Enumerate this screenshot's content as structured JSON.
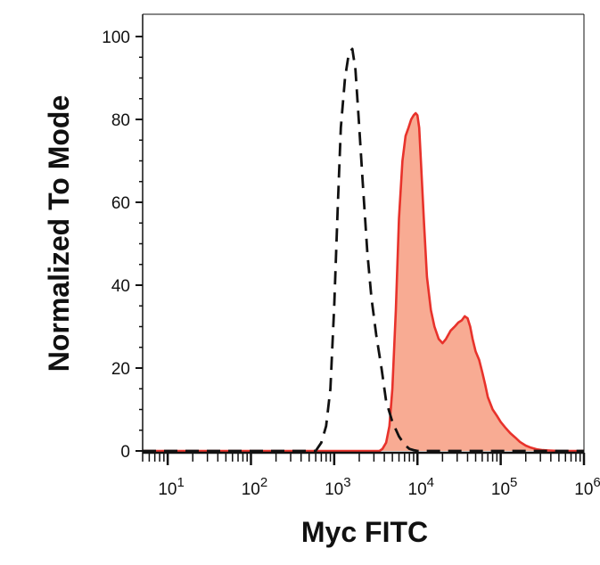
{
  "chart_data": {
    "type": "area",
    "xlabel": "Myc FITC",
    "ylabel": "Normalized To Mode",
    "x_scale": "log",
    "xlim": [
      5,
      1000000
    ],
    "ylim": [
      0,
      100
    ],
    "grid": false,
    "x_ticks": [
      {
        "value": 10,
        "base": "10",
        "exp": "1"
      },
      {
        "value": 100,
        "base": "10",
        "exp": "2"
      },
      {
        "value": 1000,
        "base": "10",
        "exp": "3"
      },
      {
        "value": 10000,
        "base": "10",
        "exp": "4"
      },
      {
        "value": 100000,
        "base": "10",
        "exp": "5"
      },
      {
        "value": 1000000,
        "base": "10",
        "exp": "6"
      }
    ],
    "y_ticks": [
      {
        "value": 0,
        "label": "0"
      },
      {
        "value": 20,
        "label": "20"
      },
      {
        "value": 40,
        "label": "40"
      },
      {
        "value": 60,
        "label": "60"
      },
      {
        "value": 80,
        "label": "80"
      },
      {
        "value": 100,
        "label": "100"
      }
    ],
    "series": [
      {
        "style": "dashed-outline",
        "color": "#111111",
        "x": [
          5,
          600,
          700,
          800,
          900,
          1000,
          1100,
          1200,
          1350,
          1500,
          1650,
          1800,
          2000,
          2200,
          2500,
          2800,
          3200,
          3700,
          4200,
          5000,
          6000,
          7000,
          8000,
          9000,
          10000,
          12000,
          1000000
        ],
        "y": [
          0,
          0,
          2,
          6,
          15,
          35,
          58,
          78,
          90,
          96,
          97,
          92,
          78,
          65,
          48,
          37,
          28,
          20,
          12,
          7,
          3.5,
          1.5,
          0.5,
          0.2,
          0,
          0,
          0
        ]
      },
      {
        "style": "filled",
        "color": "#e8322b",
        "fill": "#f8ab93",
        "x": [
          5,
          3500,
          3800,
          4200,
          4600,
          5000,
          5500,
          6000,
          6600,
          7200,
          7800,
          8400,
          9000,
          9500,
          10000,
          10500,
          11000,
          12000,
          13000,
          14500,
          16000,
          18000,
          20000,
          22000,
          25000,
          28000,
          31000,
          34000,
          37000,
          40000,
          43000,
          46000,
          50000,
          55000,
          60000,
          65000,
          70000,
          80000,
          90000,
          100000,
          115000,
          130000,
          150000,
          170000,
          200000,
          230000,
          270000,
          320000,
          380000,
          500000,
          1000000
        ],
        "y": [
          0,
          0,
          0.5,
          2,
          6,
          15,
          34,
          56,
          70,
          76,
          78,
          80,
          81,
          81.5,
          81,
          78,
          70,
          55,
          42,
          34,
          30,
          27,
          26,
          27,
          29,
          30,
          31,
          31.5,
          32.5,
          32,
          30,
          27,
          24,
          22,
          19,
          16,
          13,
          10,
          8.5,
          7,
          5.5,
          4.3,
          3.2,
          2.2,
          1.3,
          0.8,
          0.4,
          0.2,
          0.1,
          0,
          0
        ]
      }
    ]
  }
}
